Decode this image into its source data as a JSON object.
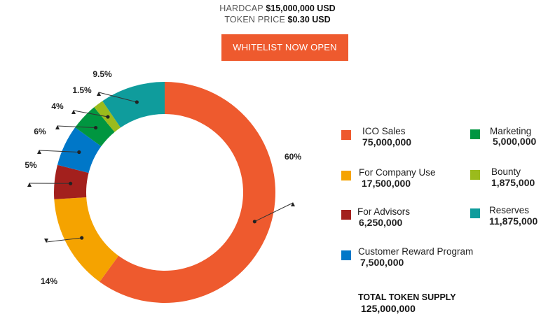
{
  "header": {
    "hardcap_label": "HARDCAP",
    "hardcap_value": "$15,000,000 USD",
    "price_label": "TOKEN PRICE",
    "price_value": "$0.30 USD"
  },
  "cta": {
    "label": "WHITELIST NOW OPEN",
    "color": "#ee5a2e"
  },
  "chart_data": {
    "type": "pie",
    "donut": true,
    "categories": [
      "ICO Sales",
      "For Company Use",
      "For Advisors",
      "Customer Reward Program",
      "Marketing",
      "Bounty",
      "Reserves"
    ],
    "values": [
      60,
      14,
      5,
      6,
      4,
      1.5,
      9.5
    ],
    "data_labels": [
      "60%",
      "14%",
      "5%",
      "6%",
      "4%",
      "1.5%",
      "9.5%"
    ],
    "colors": [
      "#ee5a2e",
      "#f5a300",
      "#a3201d",
      "#0077c8",
      "#009640",
      "#9bbb1c",
      "#0f9c9c"
    ],
    "legend_placement": "right"
  },
  "legend": [
    {
      "label": "ICO Sales",
      "value": "75,000,000",
      "color": "#ee5a2e"
    },
    {
      "label": "For Company Use",
      "value": "17,500,000",
      "color": "#f5a300"
    },
    {
      "label": "For Advisors",
      "value": "6,250,000",
      "color": "#a3201d"
    },
    {
      "label": "Customer Reward Program",
      "value": "7,500,000",
      "color": "#0077c8"
    },
    {
      "label": "Marketing",
      "value": "5,000,000",
      "color": "#009640"
    },
    {
      "label": "Bounty",
      "value": "1,875,000",
      "color": "#9bbb1c"
    },
    {
      "label": "Reserves",
      "value": "11,875,000",
      "color": "#0f9c9c"
    }
  ],
  "total": {
    "label": "TOTAL TOKEN SUPPLY",
    "value": "125,000,000"
  }
}
